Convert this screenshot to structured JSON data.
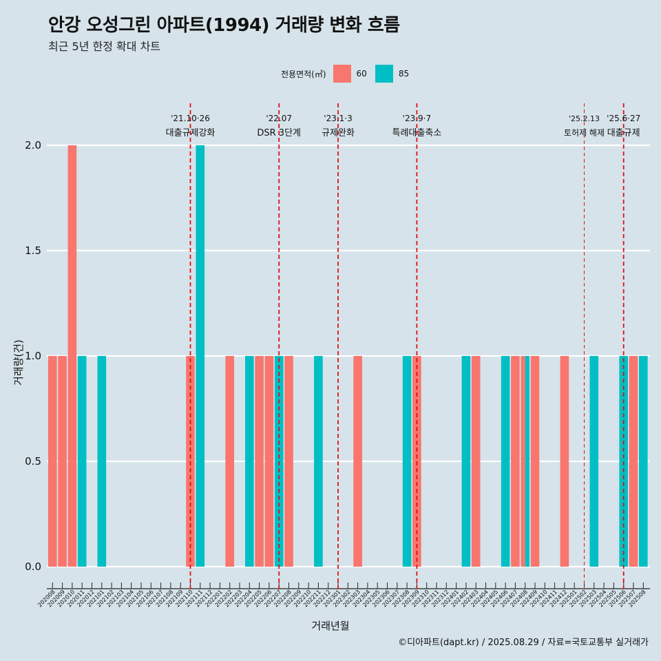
{
  "chart_data": {
    "type": "bar",
    "title": "안강 오성그린 아파트(1994) 거래량 변화 흐름",
    "subtitle": "최근 5년 한정 확대 차트",
    "xlabel": "거래년월",
    "ylabel": "거래량(건)",
    "ylim": [
      0,
      2
    ],
    "yticks": [
      "0.0",
      "0.5",
      "1.0",
      "1.5",
      "2.0"
    ],
    "grid": true,
    "legend_title": "전용면적(㎡)",
    "legend_placement": "top-center",
    "categories": [
      "202008",
      "202009",
      "202010",
      "202011",
      "202012",
      "202101",
      "202102",
      "202103",
      "202104",
      "202105",
      "202106",
      "202107",
      "202108",
      "202109",
      "202110",
      "202111",
      "202112",
      "202201",
      "202202",
      "202203",
      "202204",
      "202205",
      "202206",
      "202207",
      "202208",
      "202209",
      "202210",
      "202211",
      "202212",
      "202301",
      "202302",
      "202303",
      "202304",
      "202305",
      "202306",
      "202307",
      "202308",
      "202309",
      "202310",
      "202311",
      "202312",
      "202401",
      "202402",
      "202403",
      "202404",
      "202405",
      "202406",
      "202407",
      "202408",
      "202409",
      "202410",
      "202411",
      "202412",
      "202501",
      "202502",
      "202503",
      "202504",
      "202505",
      "202506",
      "202507",
      "202508"
    ],
    "series": [
      {
        "name": "60",
        "color": "#f8766d",
        "values": [
          1,
          1,
          2,
          0,
          0,
          0,
          0,
          0,
          0,
          0,
          0,
          0,
          0,
          0,
          1,
          0,
          0,
          0,
          1,
          0,
          0,
          1,
          1,
          0,
          1,
          0,
          0,
          0,
          0,
          0,
          0,
          1,
          0,
          0,
          0,
          0,
          0,
          1,
          0,
          0,
          0,
          0,
          0,
          1,
          0,
          0,
          0,
          1,
          1,
          1,
          0,
          0,
          1,
          0,
          0,
          0,
          0,
          0,
          0,
          1,
          0
        ]
      },
      {
        "name": "85",
        "color": "#00bfc4",
        "values": [
          0,
          0,
          0,
          1,
          0,
          1,
          0,
          0,
          0,
          0,
          0,
          0,
          0,
          0,
          0,
          2,
          0,
          0,
          0,
          0,
          1,
          0,
          0,
          1,
          0,
          0,
          0,
          1,
          0,
          0,
          0,
          0,
          0,
          0,
          0,
          0,
          1,
          0,
          0,
          0,
          0,
          0,
          1,
          0,
          0,
          0,
          1,
          0,
          1,
          0,
          0,
          0,
          0,
          0,
          0,
          1,
          0,
          0,
          1,
          0,
          1
        ]
      }
    ],
    "annotations": [
      {
        "x": "202110",
        "date": "'21.10·26",
        "label": "대출규제강화",
        "style": "dashed"
      },
      {
        "x": "202207",
        "date": "'22.07",
        "label": "DSR 3단계",
        "style": "dashed"
      },
      {
        "x": "202301",
        "date": "'23.1·3",
        "label": "규제완화",
        "style": "dashed"
      },
      {
        "x": "202309",
        "date": "'23.9·7",
        "label": "특례대출축소",
        "style": "dashed"
      },
      {
        "x": "202502",
        "date": "'25.2.13",
        "label": "토허제 해제",
        "style": "thin"
      },
      {
        "x": "202506",
        "date": "'25.6·27",
        "label": "대출규제",
        "style": "dashed"
      }
    ]
  },
  "caption": "©디아파트(dapt.kr) / 2025.08.29 / 자료=국토교통부 실거래가"
}
